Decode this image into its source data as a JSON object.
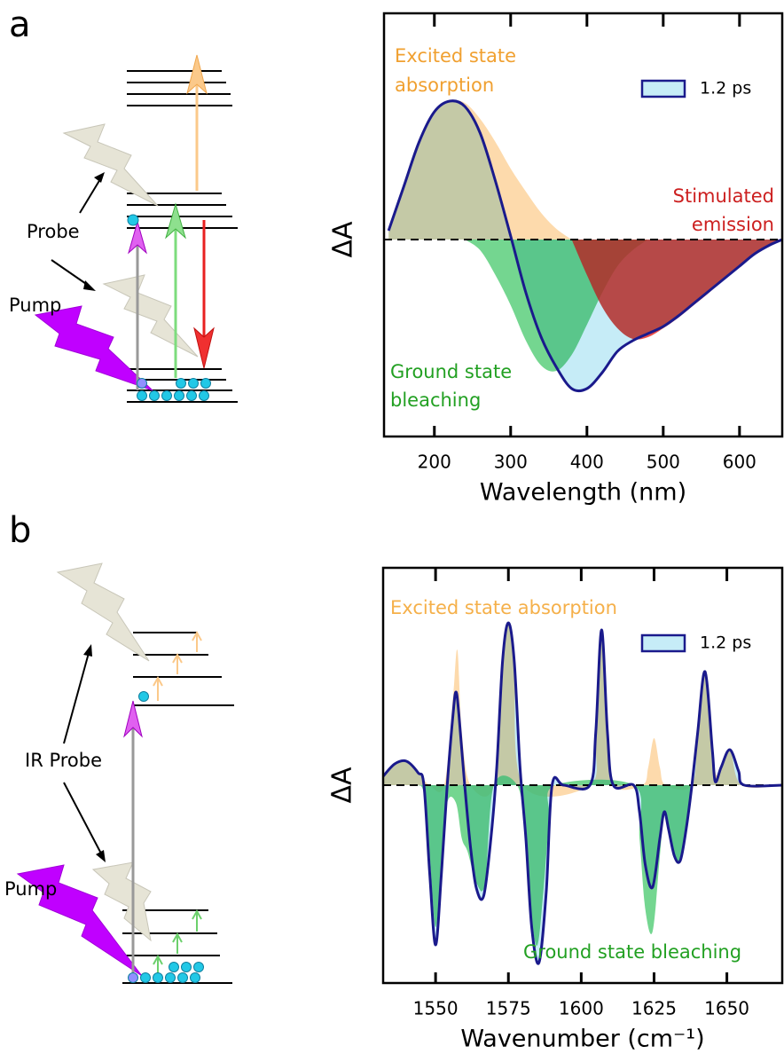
{
  "panels": [
    {
      "label": "a",
      "diagram": {
        "probe_label": "Probe",
        "pump_label": "Pump"
      }
    },
    {
      "label": "b",
      "diagram": {
        "probe_label": "IR Probe",
        "pump_label": "Pump"
      }
    }
  ],
  "chart_data": [
    {
      "type": "line",
      "xlabel": "Wavelength (nm)",
      "ylabel": "ΔA",
      "xlim": [
        134,
        656
      ],
      "xticks": [
        200,
        300,
        400,
        500,
        600
      ],
      "ylim": [
        -1.11,
        1.275
      ],
      "legend": "upper right",
      "series": [
        {
          "name": "1.2 ps",
          "color": "#1a1a8c",
          "fill": "#c6ecf7",
          "x": [
            140,
            160,
            180,
            200,
            220,
            240,
            260,
            280,
            300,
            320,
            340,
            360,
            380,
            400,
            420,
            440,
            460,
            480,
            500,
            520,
            540,
            560,
            580,
            600,
            620,
            640,
            656
          ],
          "values": [
            0.05,
            0.3,
            0.55,
            0.72,
            0.78,
            0.75,
            0.6,
            0.33,
            0.02,
            -0.3,
            -0.55,
            -0.72,
            -0.84,
            -0.84,
            -0.75,
            -0.63,
            -0.57,
            -0.53,
            -0.49,
            -0.43,
            -0.36,
            -0.29,
            -0.22,
            -0.15,
            -0.08,
            -0.03,
            0
          ]
        }
      ],
      "bands": [
        {
          "label": [
            "Excited state",
            "absorption"
          ],
          "color": "#fdd49e",
          "label_color": "#f0a030",
          "x": [
            140,
            160,
            180,
            200,
            220,
            240,
            260,
            280,
            300,
            320,
            340,
            360,
            380
          ],
          "values": [
            0.05,
            0.3,
            0.55,
            0.72,
            0.78,
            0.77,
            0.68,
            0.55,
            0.4,
            0.27,
            0.15,
            0.06,
            0
          ]
        },
        {
          "label": [
            "Ground state",
            "bleaching"
          ],
          "color": "#5ccf7c",
          "label_color": "#22a022",
          "x": [
            240,
            260,
            280,
            300,
            320,
            340,
            360,
            380,
            400,
            420,
            440,
            460,
            480
          ],
          "values": [
            0,
            -0.06,
            -0.2,
            -0.37,
            -0.57,
            -0.71,
            -0.74,
            -0.65,
            -0.48,
            -0.3,
            -0.15,
            -0.06,
            0
          ]
        },
        {
          "label": [
            "Stimulated",
            "emission"
          ],
          "color": "#e8302a",
          "label_color": "#cc1f1f",
          "x": [
            380,
            400,
            420,
            440,
            460,
            480,
            500,
            520,
            540,
            560,
            580,
            600,
            620,
            640,
            656
          ],
          "values": [
            0,
            -0.2,
            -0.38,
            -0.5,
            -0.56,
            -0.55,
            -0.5,
            -0.44,
            -0.37,
            -0.3,
            -0.22,
            -0.15,
            -0.08,
            -0.03,
            0
          ]
        }
      ]
    },
    {
      "type": "line",
      "xlabel": "Wavenumber (cm⁻¹)",
      "ylabel": "ΔA",
      "xlim": [
        1532,
        1669
      ],
      "xticks": [
        1550,
        1575,
        1600,
        1625,
        1650
      ],
      "ylim": [
        -1.115,
        1.225
      ],
      "legend": "upper right",
      "series": [
        {
          "name": "1.2 ps",
          "color": "#1a1a8c",
          "fill": "#c6ecf7",
          "x": [
            1532,
            1536,
            1540,
            1544,
            1546,
            1548,
            1550,
            1552,
            1554,
            1556,
            1557,
            1558,
            1560,
            1562,
            1564,
            1566.5,
            1569,
            1571,
            1573,
            1575,
            1577,
            1579,
            1581,
            1583,
            1585.5,
            1588,
            1590,
            1594,
            1603,
            1605,
            1607,
            1609,
            1611,
            1618,
            1620,
            1622,
            1624.5,
            1627,
            1628.5,
            1630,
            1632,
            1634,
            1636,
            1638,
            1640,
            1642.5,
            1645,
            1646,
            1648,
            1651,
            1654,
            1656,
            1669
          ],
          "values": [
            0.05,
            0.12,
            0.135,
            0.07,
            0,
            -0.5,
            -0.9,
            -0.5,
            0,
            0.4,
            0.525,
            0.4,
            0,
            -0.35,
            -0.58,
            -0.625,
            -0.3,
            0.1,
            0.7,
            0.915,
            0.7,
            0.1,
            -0.3,
            -0.8,
            -1.0,
            -0.6,
            0,
            0,
            0,
            0.3,
            0.875,
            0.3,
            0,
            0,
            -0.15,
            -0.45,
            -0.575,
            -0.3,
            -0.15,
            -0.25,
            -0.4,
            -0.425,
            -0.25,
            0,
            0.3,
            0.64,
            0.2,
            0.02,
            0.1,
            0.2,
            0.08,
            0,
            0
          ]
        }
      ],
      "bands": [
        {
          "label": [
            "Excited state absorption"
          ],
          "color": "#fdd49e",
          "label_color": "#f5b04a",
          "x": [
            1532,
            1536,
            1540,
            1544,
            1548,
            1553,
            1556,
            1557.5,
            1559,
            1562,
            1570,
            1573,
            1575,
            1577,
            1580,
            1603,
            1605,
            1607,
            1609,
            1611,
            1621,
            1623,
            1625,
            1627,
            1629,
            1638,
            1640,
            1642.5,
            1645,
            1647,
            1651,
            1655,
            1669
          ],
          "values": [
            0.05,
            0.12,
            0.135,
            0.07,
            0,
            0,
            0.5,
            0.76,
            0.3,
            0,
            0,
            0.7,
            0.915,
            0.7,
            0,
            0,
            0.3,
            0.875,
            0.3,
            0,
            0,
            0.1,
            0.265,
            0.1,
            0,
            0,
            0.3,
            0.64,
            0.2,
            0.05,
            0.2,
            0,
            0
          ]
        },
        {
          "label": [
            "Ground state bleaching"
          ],
          "color": "#5ccf7c",
          "label_color": "#22a022",
          "x": [
            1544,
            1546,
            1548,
            1550,
            1552,
            1554,
            1557,
            1559,
            1561,
            1564,
            1567,
            1570,
            1578,
            1581,
            1583,
            1585,
            1587,
            1589,
            1591,
            1618,
            1620,
            1622,
            1624.5,
            1627,
            1628.5,
            1630,
            1632,
            1634,
            1636,
            1638
          ],
          "values": [
            0,
            -0.05,
            -0.4,
            -0.8,
            -0.45,
            -0.1,
            -0.1,
            -0.3,
            -0.375,
            -0.55,
            -0.55,
            0,
            0,
            -0.3,
            -0.75,
            -0.9,
            -0.6,
            -0.2,
            0,
            0,
            -0.3,
            -0.7,
            -0.825,
            -0.4,
            -0.15,
            -0.25,
            -0.4,
            -0.425,
            -0.25,
            0
          ]
        }
      ]
    }
  ]
}
